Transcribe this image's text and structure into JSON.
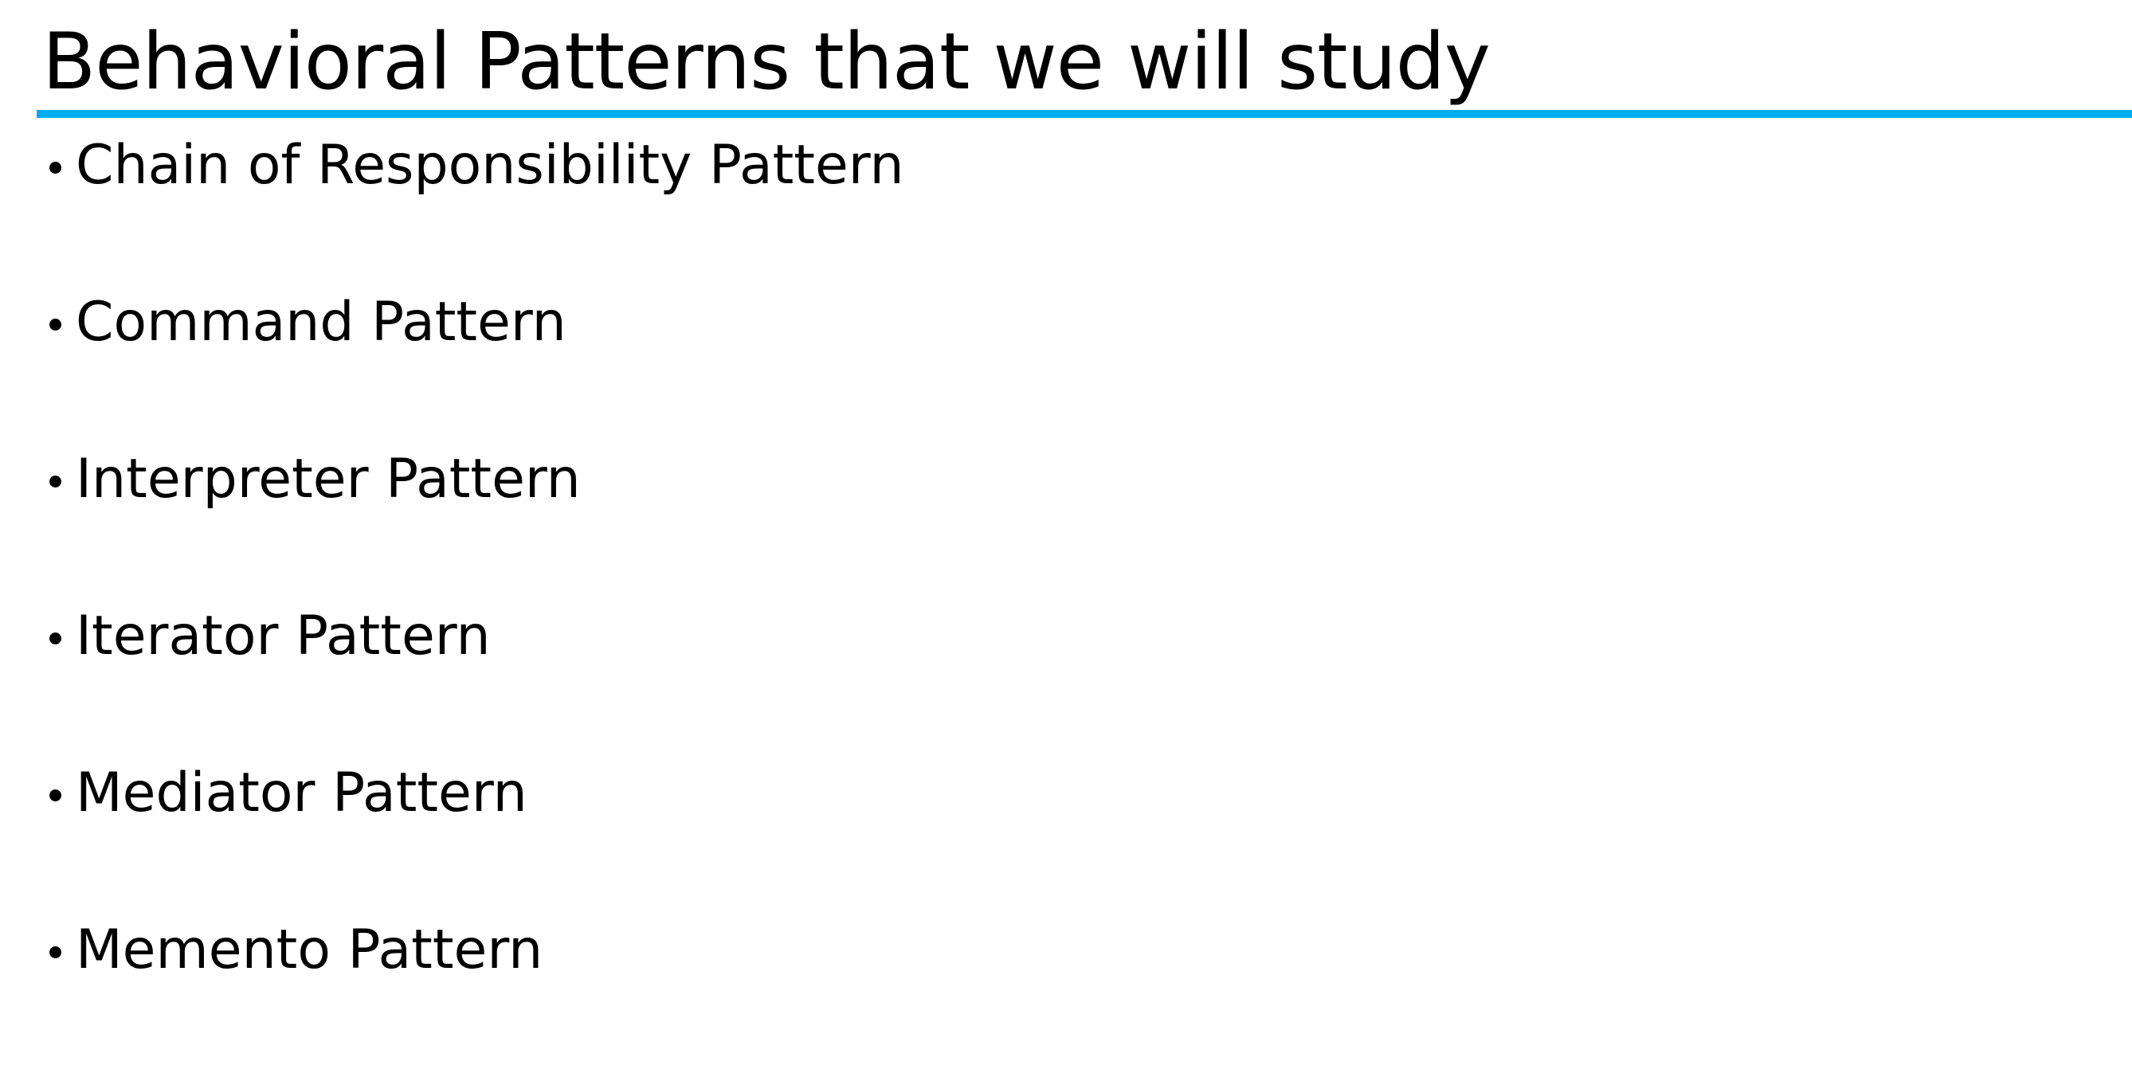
{
  "slide": {
    "title": "Behavioral Patterns that we will study",
    "accent_color": "#00aeef",
    "bullets": [
      {
        "label": "Chain of Responsibility Pattern"
      },
      {
        "label": "Command Pattern"
      },
      {
        "label": "Interpreter Pattern"
      },
      {
        "label": "Iterator Pattern"
      },
      {
        "label": "Mediator Pattern"
      },
      {
        "label": "Memento Pattern"
      }
    ]
  }
}
